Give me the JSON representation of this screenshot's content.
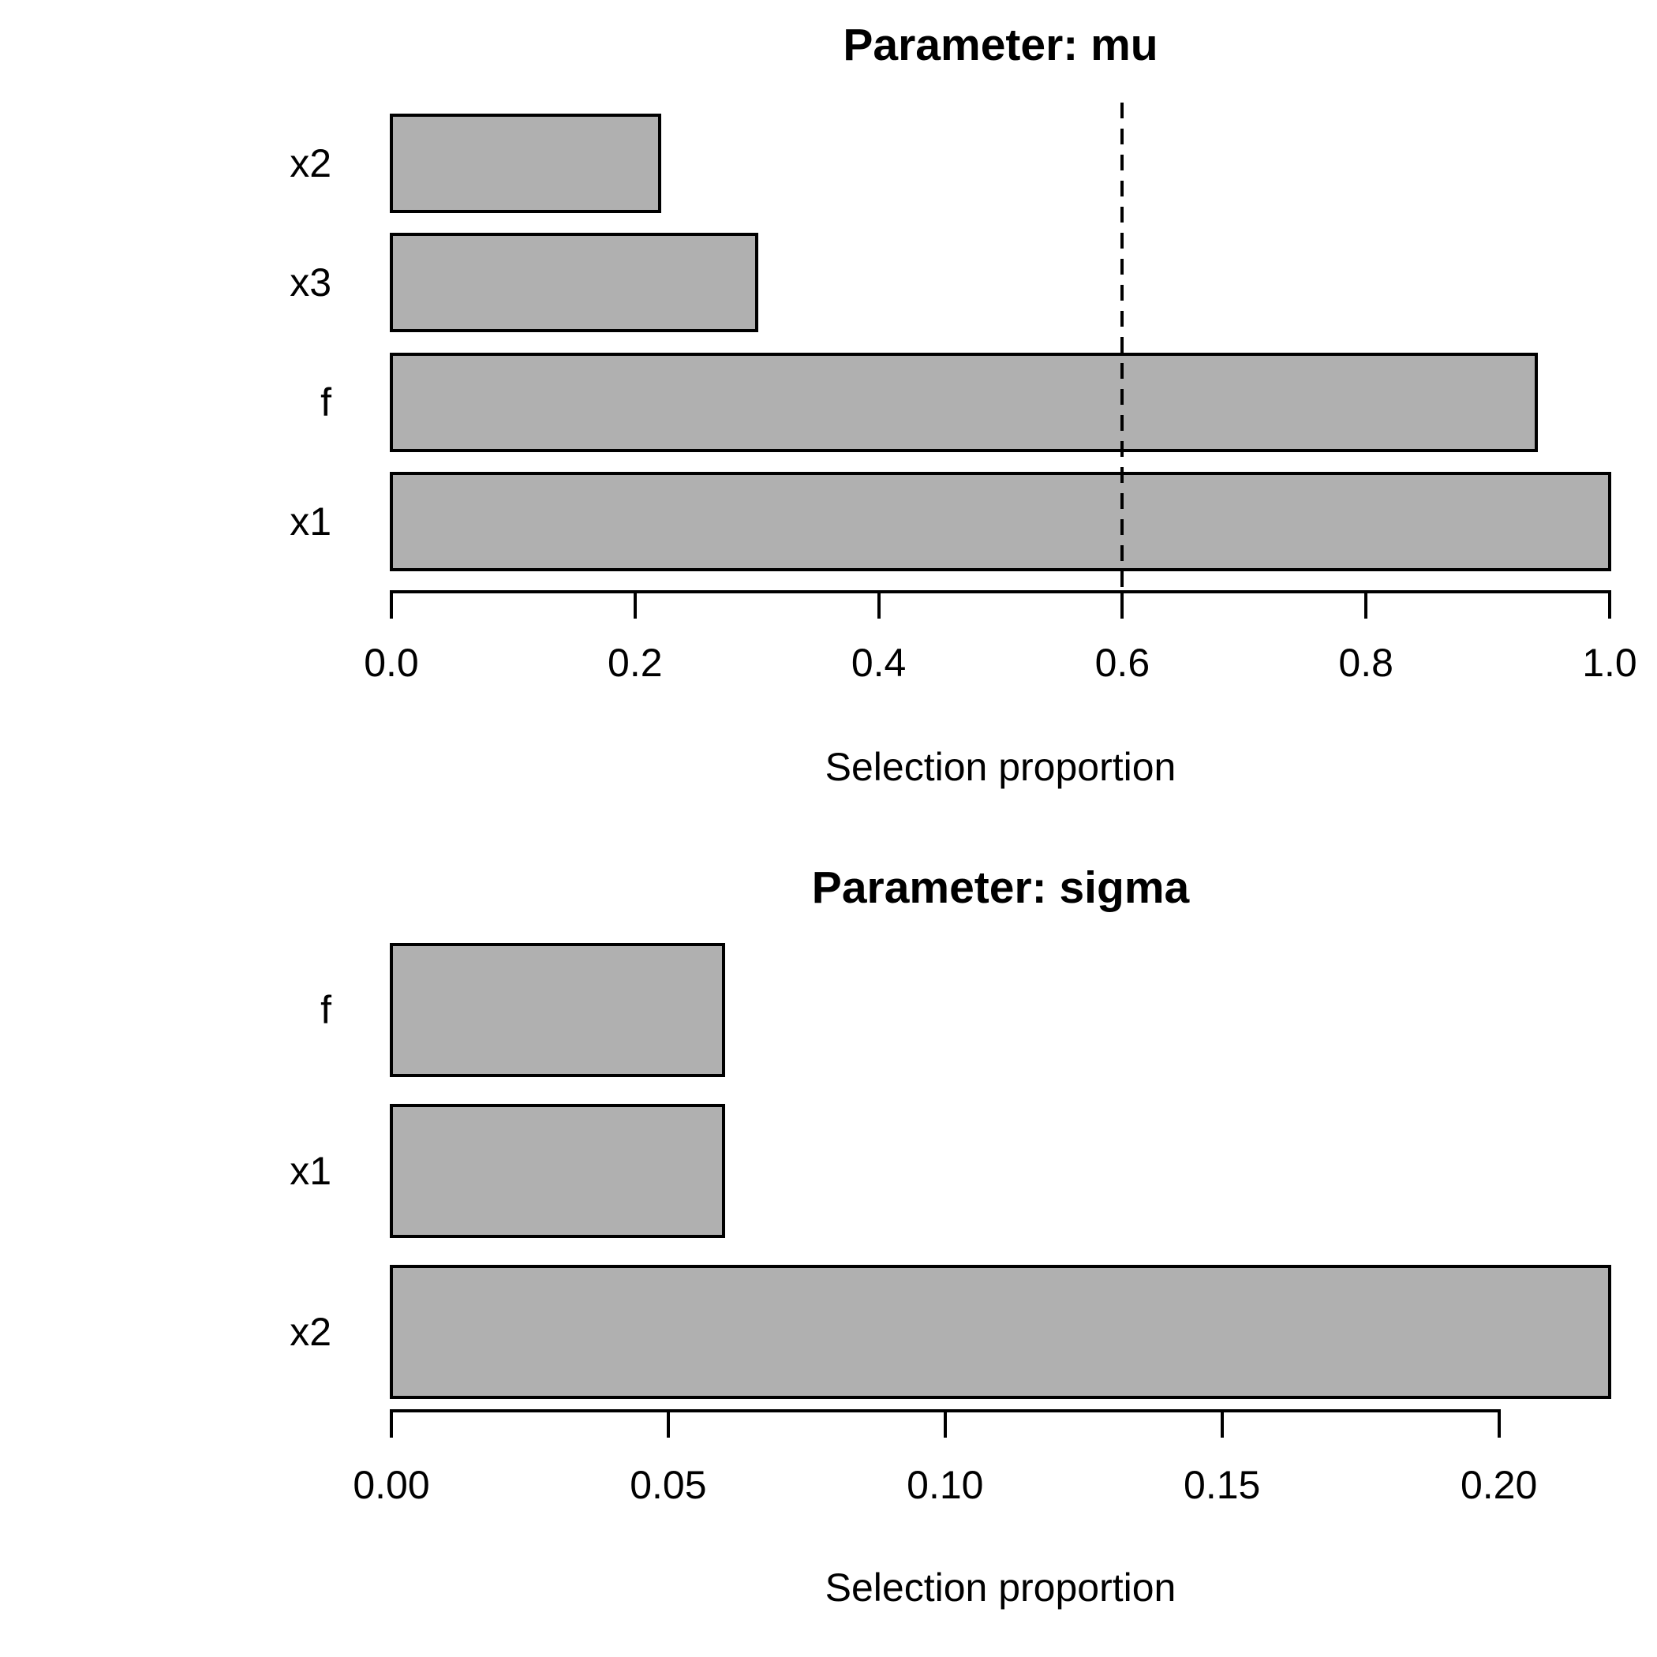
{
  "colors": {
    "background": "#ffffff",
    "bar_fill": "#b0b0b0",
    "bar_border": "#000000",
    "axis": "#000000",
    "threshold_line": "#000000"
  },
  "chart_data": [
    {
      "type": "bar",
      "orientation": "horizontal",
      "title": "Parameter: mu",
      "xlabel": "Selection proportion",
      "categories": [
        "x2",
        "x3",
        "f",
        "x1"
      ],
      "values": [
        0.22,
        0.3,
        0.94,
        1.0
      ],
      "xlim": [
        0,
        1.0
      ],
      "xticks": [
        {
          "value": 0.0,
          "label": "0.0"
        },
        {
          "value": 0.2,
          "label": "0.2"
        },
        {
          "value": 0.4,
          "label": "0.4"
        },
        {
          "value": 0.6,
          "label": "0.6"
        },
        {
          "value": 0.8,
          "label": "0.8"
        },
        {
          "value": 1.0,
          "label": "1.0"
        }
      ],
      "threshold_line": {
        "value": 0.6,
        "style": "dashed"
      },
      "grid": false,
      "legend": null
    },
    {
      "type": "bar",
      "orientation": "horizontal",
      "title": "Parameter: sigma",
      "xlabel": "Selection proportion",
      "categories": [
        "f",
        "x1",
        "x2"
      ],
      "values": [
        0.06,
        0.06,
        0.22
      ],
      "xlim": [
        0,
        0.22
      ],
      "xticks": [
        {
          "value": 0.0,
          "label": "0.00"
        },
        {
          "value": 0.05,
          "label": "0.05"
        },
        {
          "value": 0.1,
          "label": "0.10"
        },
        {
          "value": 0.15,
          "label": "0.15"
        },
        {
          "value": 0.2,
          "label": "0.20"
        }
      ],
      "threshold_line": null,
      "grid": false,
      "legend": null
    }
  ]
}
